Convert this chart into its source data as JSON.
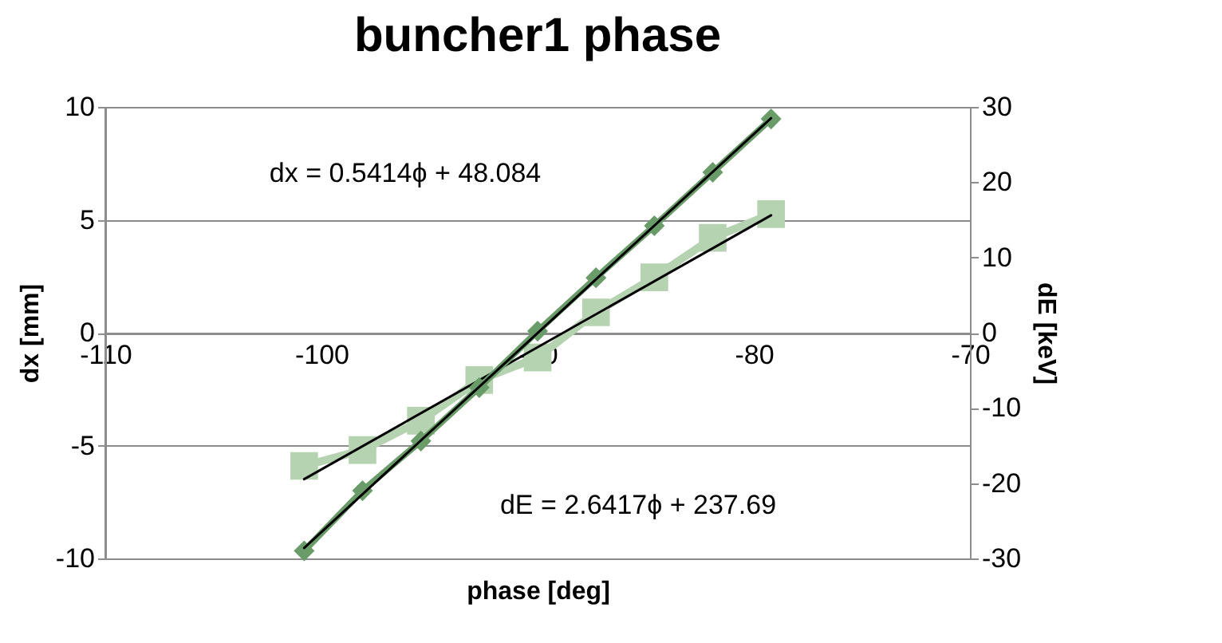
{
  "chart_data": {
    "type": "line",
    "title": "buncher1 phase",
    "xlabel": "phase [deg]",
    "ylabel": "dx [mm]",
    "y2label": "dE [keV]",
    "xlim": [
      -110,
      -70
    ],
    "xticks": [
      -110,
      -100,
      -90,
      -80,
      -70
    ],
    "ylim": [
      -10,
      10
    ],
    "yticks": [
      -10,
      -5,
      0,
      5,
      10
    ],
    "y2lim": [
      -30,
      30
    ],
    "y2ticks": [
      -30,
      -20,
      -10,
      0,
      10,
      20,
      30
    ],
    "grid": "y",
    "annotations": [
      "dx = 0.5414ϕ + 48.084",
      "dE = 2.6417ϕ + 237.69"
    ],
    "series": [
      {
        "axis": "y",
        "marker": "square",
        "color": "#b5d3b0",
        "x": [
          -100.8,
          -98.1,
          -95.4,
          -92.7,
          -90.0,
          -87.3,
          -84.6,
          -81.9,
          -79.2
        ],
        "values": [
          -5.9,
          -5.2,
          -3.9,
          -2.1,
          -1.1,
          0.9,
          2.45,
          4.2,
          5.25
        ]
      },
      {
        "axis": "y2",
        "marker": "diamond",
        "color": "#6a9c6a",
        "x": [
          -100.8,
          -98.1,
          -95.4,
          -92.7,
          -90.0,
          -87.3,
          -84.6,
          -81.9,
          -79.2
        ],
        "values": [
          -29,
          -21,
          -14.4,
          -7.3,
          0.2,
          7.3,
          14.2,
          21.3,
          28.4
        ]
      },
      {
        "axis": "y",
        "marker": "none",
        "color": "#000000",
        "x": [
          -100.8,
          -79.2
        ],
        "values": [
          -6.49,
          5.2
        ]
      },
      {
        "axis": "y2",
        "marker": "none",
        "color": "#000000",
        "x": [
          -100.8,
          -79.2
        ],
        "values": [
          -28.6,
          28.5
        ]
      }
    ]
  }
}
